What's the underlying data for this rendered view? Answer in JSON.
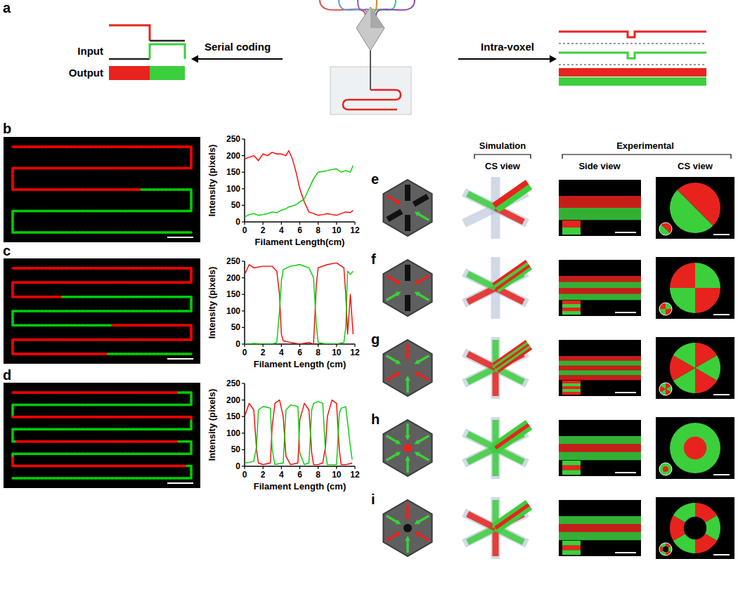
{
  "figure": {
    "panel_labels": [
      "a",
      "b",
      "c",
      "d",
      "e",
      "f",
      "g",
      "h",
      "i"
    ],
    "panel_a": {
      "input_label": "Input",
      "output_label": "Output",
      "left_label": "Serial coding",
      "right_label": "Intra-voxel"
    },
    "panels_e_to_i": {
      "simulation_header": "Simulation",
      "experimental_header": "Experimental",
      "simulation_view": "CS view",
      "side_view": "Side view",
      "experimental_view": "CS view"
    }
  },
  "chart_data": [
    {
      "type": "line",
      "x_label": "Filament Length(cm)",
      "y_label": "Intensity (pixels)",
      "x": [
        0,
        0.5,
        1,
        1.5,
        2,
        2.5,
        3,
        3.5,
        4,
        4.5,
        4.8,
        5.2,
        5.6,
        6,
        6.5,
        7,
        7.5,
        8,
        8.5,
        9,
        9.5,
        10,
        10.5,
        11,
        11.5,
        11.8
      ],
      "series": [
        {
          "color": "#ff0000",
          "values": [
            190,
            195,
            200,
            185,
            205,
            200,
            210,
            205,
            205,
            200,
            215,
            190,
            150,
            100,
            60,
            30,
            25,
            20,
            22,
            25,
            22,
            20,
            25,
            30,
            28,
            35
          ]
        },
        {
          "color": "#00cc00",
          "values": [
            15,
            22,
            25,
            20,
            22,
            25,
            30,
            28,
            35,
            40,
            45,
            48,
            52,
            60,
            70,
            100,
            130,
            150,
            152,
            155,
            158,
            160,
            150,
            155,
            150,
            170
          ]
        }
      ],
      "xlim": [
        0,
        12
      ],
      "xticks": [
        0,
        2,
        4,
        6,
        8,
        10,
        12
      ],
      "ylim": [
        0,
        250
      ],
      "yticks": [
        0,
        50,
        100,
        150,
        200,
        250
      ],
      "grid": false
    },
    {
      "type": "line",
      "x_label": "Filament Length (cm)",
      "y_label": "Intensity (pixels)",
      "x": [
        0,
        0.5,
        1,
        2,
        3,
        3.5,
        3.8,
        4,
        4.2,
        5,
        6,
        7,
        7.5,
        7.8,
        8,
        9,
        10,
        10.8,
        11,
        11.2,
        11.5,
        11.8
      ],
      "series": [
        {
          "color": "#ff0000",
          "values": [
            210,
            240,
            230,
            235,
            235,
            220,
            150,
            30,
            10,
            5,
            0,
            5,
            0,
            180,
            230,
            240,
            245,
            230,
            150,
            30,
            150,
            30
          ]
        },
        {
          "color": "#00cc00",
          "values": [
            0,
            0,
            2,
            0,
            0,
            5,
            100,
            190,
            225,
            235,
            240,
            230,
            200,
            60,
            5,
            0,
            0,
            5,
            50,
            220,
            210,
            220
          ]
        }
      ],
      "xlim": [
        0,
        12
      ],
      "xticks": [
        0,
        2,
        4,
        6,
        8,
        10,
        12
      ],
      "ylim": [
        0,
        250
      ],
      "yticks": [
        0,
        50,
        100,
        150,
        200,
        250
      ],
      "grid": false
    },
    {
      "type": "line",
      "x_label": "Filament Length (cm)",
      "y_label": "Intensity (pixels)",
      "x": [
        0,
        0.5,
        1,
        1.3,
        1.5,
        2,
        2.5,
        2.8,
        3,
        3.3,
        3.8,
        4.2,
        4.5,
        5,
        5.5,
        5.8,
        6,
        6.5,
        7,
        7.3,
        7.5,
        8,
        8.5,
        8.8,
        9,
        9.5,
        10,
        10.3,
        10.5,
        11,
        11.5,
        11.7
      ],
      "series": [
        {
          "color": "#ff0000",
          "values": [
            150,
            190,
            170,
            50,
            10,
            5,
            8,
            10,
            120,
            190,
            200,
            150,
            30,
            5,
            8,
            10,
            140,
            190,
            170,
            40,
            5,
            5,
            10,
            60,
            150,
            200,
            190,
            50,
            5,
            5,
            8,
            10
          ]
        },
        {
          "color": "#00cc00",
          "values": [
            10,
            12,
            15,
            60,
            170,
            180,
            178,
            175,
            50,
            5,
            8,
            10,
            170,
            185,
            182,
            180,
            40,
            5,
            10,
            170,
            190,
            195,
            190,
            40,
            5,
            5,
            5,
            160,
            175,
            180,
            60,
            20
          ]
        }
      ],
      "xlim": [
        0,
        12
      ],
      "xticks": [
        0,
        2,
        4,
        6,
        8,
        10,
        12
      ],
      "ylim": [
        0,
        250
      ],
      "yticks": [
        0,
        50,
        100,
        150,
        200,
        250
      ],
      "grid": false
    }
  ]
}
